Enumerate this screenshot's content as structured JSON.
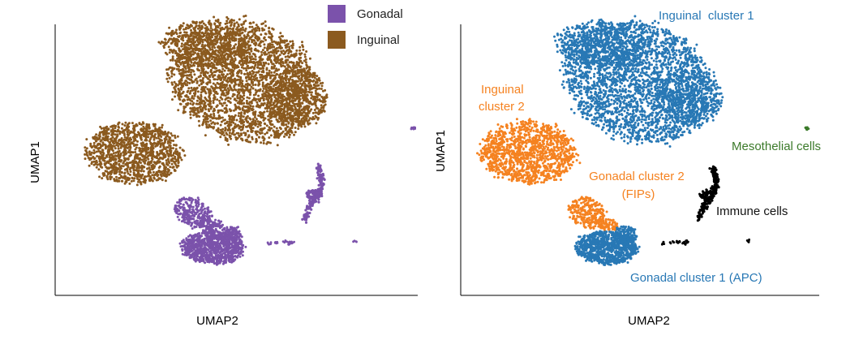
{
  "chart_data": [
    {
      "type": "scatter",
      "panel": "left",
      "xlabel": "UMAP2",
      "ylabel": "UMAP1",
      "legend_position": "top-right",
      "grid": false,
      "legend": [
        {
          "label": "Gonadal",
          "color": "#7b52ab"
        },
        {
          "label": "Inguinal",
          "color": "#8b5a1f"
        }
      ],
      "series": [
        {
          "name": "Gonadal",
          "color": "#7b52ab"
        },
        {
          "name": "Inguinal",
          "color": "#8b5a1f"
        }
      ]
    },
    {
      "type": "scatter",
      "panel": "right",
      "xlabel": "UMAP2",
      "ylabel": "UMAP1",
      "grid": false,
      "clusters": [
        {
          "label": "Inguinal  cluster 1",
          "color": "#2878b5"
        },
        {
          "label": "Inguinal\ncluster 2",
          "color": "#f58220"
        },
        {
          "label": "Gonadal cluster 2\n(FIPs)",
          "color": "#f58220"
        },
        {
          "label": "Mesothelial cells",
          "color": "#3b7a2a"
        },
        {
          "label": "Immune cells",
          "color": "#000000"
        },
        {
          "label": "Gonadal cluster 1 (APC)",
          "color": "#2878b5"
        }
      ]
    }
  ]
}
